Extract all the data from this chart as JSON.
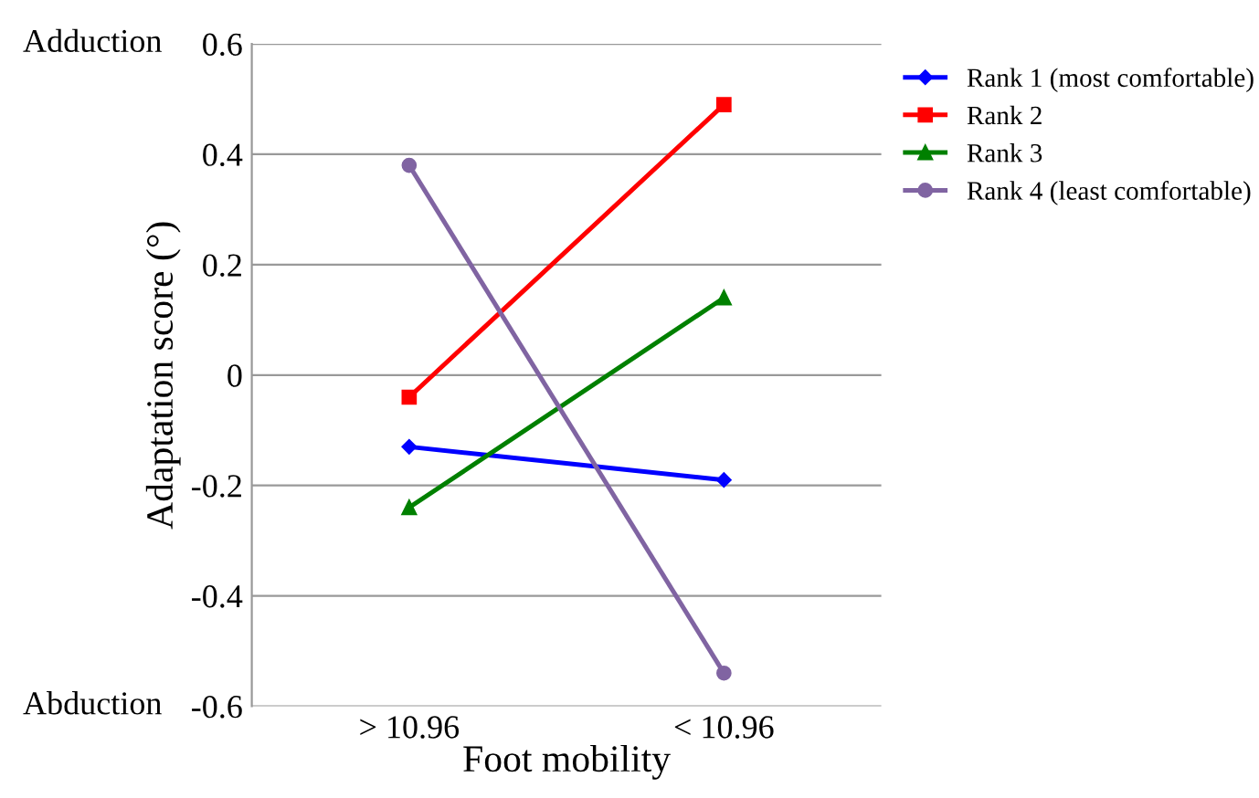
{
  "chart_data": {
    "type": "line",
    "xlabel": "Foot mobility",
    "ylabel": "Adaptation score (°)",
    "categories": [
      "> 10.96",
      "< 10.96"
    ],
    "series": [
      {
        "name": "Rank 1 (most comfortable)",
        "color": "#0000ff",
        "marker": "diamond",
        "values": [
          -0.13,
          -0.19
        ]
      },
      {
        "name": "Rank 2",
        "color": "#ff0000",
        "marker": "square",
        "values": [
          -0.04,
          0.49
        ]
      },
      {
        "name": "Rank 3",
        "color": "#008000",
        "marker": "triangle",
        "values": [
          -0.24,
          0.14
        ]
      },
      {
        "name": "Rank 4 (least comfortable)",
        "color": "#8064a2",
        "marker": "circle",
        "values": [
          0.38,
          -0.54
        ]
      }
    ],
    "ylim": [
      -0.6,
      0.6
    ],
    "yticks": [
      -0.6,
      -0.4,
      -0.2,
      0,
      0.2,
      0.4,
      0.6
    ],
    "grid": "y",
    "legend": "top right",
    "annotations": [
      "Adduction",
      "Abduction"
    ]
  }
}
